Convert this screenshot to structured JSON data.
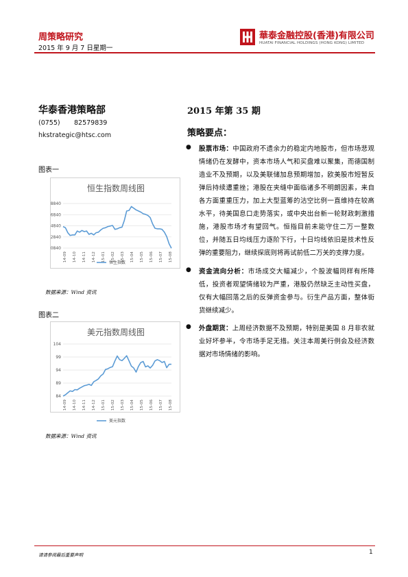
{
  "header": {
    "report_type": "周策略研究",
    "date": "2015 年 9 月 7 日星期一",
    "company_cn": "華泰金融控股(香港)有限公司",
    "company_en": "HUATAI FINANCIAL HOLDINGS (HONG KONG) LIMITED",
    "accent_color": "#c0141c"
  },
  "sidebar": {
    "department": "华泰香港策略部",
    "phone_area": "(0755)",
    "phone_number": "82579839",
    "email": "hkstrategic@htsc.com"
  },
  "figures": [
    {
      "label": "图表一",
      "source": "数据来源：Wind 资讯"
    },
    {
      "label": "图表二",
      "source": "数据来源：Wind 资讯"
    }
  ],
  "main": {
    "issue": "2015 年第 35 期",
    "section_title": "策略要点：",
    "bullets": [
      {
        "head": "股票市场：",
        "body": "中国政府不遗余力的稳定内地股市，但市场悲观情绪仍在发酵中，资本市场人气和买盘难以聚集，而德国制造业不及预期，以及美联储加息预期增加，欧美股市短暂反弹后持续遭重挫；港股在夹缝中面临诸多不明朗因素，来自各方面重重压力，加上大型蓝筹的沽空比例一直维持在较高水平，待美国息口走势落实，或中央出台新一轮财政刺激措施，港股市场才有望回气。恒指目前未能守住二万一整数位，并随五日均线压力逐阶下行，十日均线依旧是技术性反弹的重要阻力，继续探底则将再试前低二万关的支撑力度。"
      },
      {
        "head": "资金流向分析：",
        "body": "市场成交大幅减少，个股波幅同样有所降低，投资者观望情绪较为严重，港股仍然缺乏主动性买盘，仅有大幅回落之后的反弹资金参与。衍生产品方面，整体街货继续减少。"
      },
      {
        "head": "外盘期货：",
        "body": "上周经济数据不及预期，特别是美国 8 月非农就业好坏参半，令市场手足无措。关注本周美行例会及经济数据对市场情绪的影响。"
      }
    ]
  },
  "footer": {
    "disclaimer": "请请参阅最后重要声明",
    "page": "1"
  },
  "chart_data": [
    {
      "type": "line",
      "title": "恒生指数周线图",
      "legend": [
        "恒生指数"
      ],
      "legend_position": "bottom",
      "line_color": "#5b9bd5",
      "grid": true,
      "ylim": [
        20840,
        28840
      ],
      "yticks": [
        "20840",
        "22840",
        "24840",
        "26840",
        "28840"
      ],
      "xticks": [
        "14-09",
        "14-10",
        "14-11",
        "14-12",
        "15-01",
        "15-02",
        "15-03",
        "15-04",
        "15-05",
        "15-06",
        "15-07",
        "15-08"
      ],
      "series": [
        {
          "name": "恒生指数",
          "x": [
            "14-09",
            "14-09",
            "14-09",
            "14-10",
            "14-10",
            "14-10",
            "14-10",
            "14-11",
            "14-11",
            "14-11",
            "14-11",
            "14-12",
            "14-12",
            "14-12",
            "14-12",
            "15-01",
            "15-01",
            "15-01",
            "15-01",
            "15-02",
            "15-02",
            "15-02",
            "15-03",
            "15-03",
            "15-03",
            "15-03",
            "15-04",
            "15-04",
            "15-04",
            "15-04",
            "15-05",
            "15-05",
            "15-05",
            "15-05",
            "15-06",
            "15-06",
            "15-06",
            "15-06",
            "15-07",
            "15-07",
            "15-07",
            "15-07",
            "15-08",
            "15-08",
            "15-08",
            "15-08",
            "15-09"
          ],
          "values": [
            24700,
            24500,
            23600,
            23100,
            23200,
            23200,
            23900,
            23700,
            24000,
            23800,
            23900,
            23300,
            23500,
            23200,
            23600,
            23700,
            24100,
            24400,
            24500,
            24700,
            24800,
            24900,
            24200,
            24300,
            24500,
            24600,
            25800,
            27500,
            27600,
            28300,
            28000,
            27700,
            27500,
            27300,
            27000,
            26900,
            26700,
            26300,
            25200,
            24400,
            24300,
            24300,
            24200,
            23700,
            22900,
            21600,
            20800
          ]
        }
      ]
    },
    {
      "type": "line",
      "title": "美元指数周线图",
      "legend": [
        "美元指数"
      ],
      "legend_position": "bottom",
      "line_color": "#5b9bd5",
      "grid": true,
      "ylim": [
        84,
        104
      ],
      "yticks": [
        "84",
        "89",
        "94",
        "99",
        "104"
      ],
      "xticks": [
        "14-09",
        "14-10",
        "14-11",
        "14-12",
        "15-01",
        "15-02",
        "15-03",
        "15-04",
        "15-05",
        "15-06",
        "15-07",
        "15-08"
      ],
      "series": [
        {
          "name": "美元指数",
          "x": [
            "14-09",
            "14-09",
            "14-09",
            "14-10",
            "14-10",
            "14-10",
            "14-10",
            "14-11",
            "14-11",
            "14-11",
            "14-11",
            "14-12",
            "14-12",
            "14-12",
            "14-12",
            "15-01",
            "15-01",
            "15-01",
            "15-01",
            "15-02",
            "15-02",
            "15-02",
            "15-03",
            "15-03",
            "15-03",
            "15-03",
            "15-04",
            "15-04",
            "15-04",
            "15-04",
            "15-05",
            "15-05",
            "15-05",
            "15-05",
            "15-06",
            "15-06",
            "15-06",
            "15-06",
            "15-07",
            "15-07",
            "15-07",
            "15-07",
            "15-08",
            "15-08",
            "15-08",
            "15-08",
            "15-09"
          ],
          "values": [
            84.0,
            84.5,
            85.3,
            86.0,
            85.8,
            86.5,
            86.4,
            87.0,
            87.5,
            88.0,
            88.2,
            88.5,
            88.1,
            89.5,
            90.0,
            90.6,
            91.8,
            92.5,
            94.2,
            94.5,
            95.0,
            95.3,
            97.5,
            99.4,
            98.0,
            97.6,
            98.5,
            99.5,
            97.5,
            95.5,
            94.8,
            93.2,
            95.4,
            96.9,
            97.3,
            95.2,
            95.6,
            94.8,
            95.8,
            97.5,
            98.0,
            97.6,
            96.9,
            97.3,
            94.9,
            96.2,
            96.2
          ]
        }
      ]
    }
  ]
}
